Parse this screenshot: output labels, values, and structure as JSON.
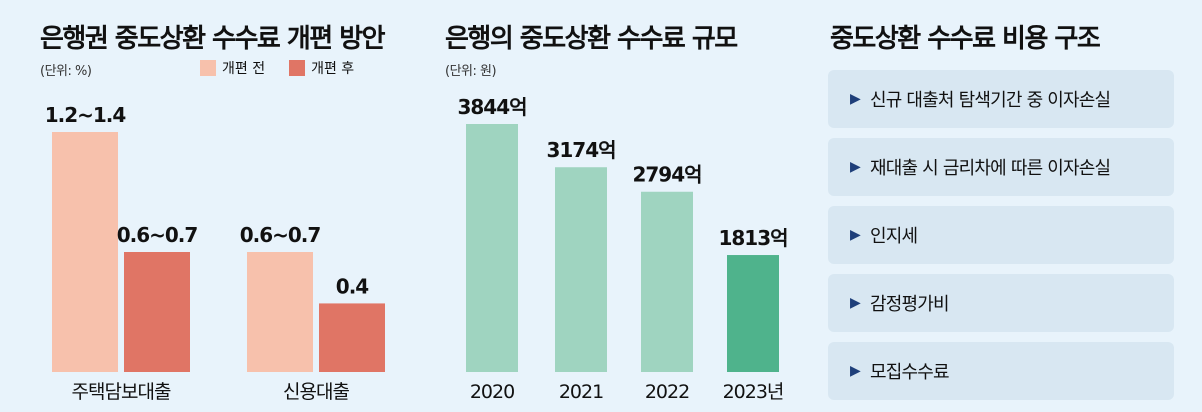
{
  "panels": {
    "left": {
      "title": "은행권 중도상환 수수료 개편 방안",
      "unit": "(단위: %)",
      "legend": [
        {
          "label": "개편 전",
          "color": "#f7c1ac"
        },
        {
          "label": "개편 후",
          "color": "#e07565"
        }
      ]
    },
    "middle": {
      "title": "은행의 중도상환 수수료 규모",
      "unit": "(단위: 원)"
    },
    "right": {
      "title": "중도상환 수수료 비용 구조",
      "items": [
        "신규 대출처 탐색기간 중 이자손실",
        "재대출 시 금리차에 따른 이자손실",
        "인지세",
        "감정평가비",
        "모집수수료"
      ],
      "bullet": "▶"
    }
  },
  "chart_data": [
    {
      "type": "bar",
      "title": "은행권 중도상환 수수료 개편 방안",
      "ylabel": "(단위: %)",
      "categories": [
        "주택담보대출",
        "신용대출"
      ],
      "series": [
        {
          "name": "개편 전",
          "values": [
            1.4,
            0.7
          ],
          "labels": [
            "1.2~1.4",
            "0.6~0.7"
          ],
          "color": "#f7c1ac"
        },
        {
          "name": "개편 후",
          "values": [
            0.7,
            0.4
          ],
          "labels": [
            "0.6~0.7",
            "0.4"
          ],
          "color": "#e07565"
        }
      ],
      "ylim": [
        0,
        1.4
      ]
    },
    {
      "type": "bar",
      "title": "은행의 중도상환 수수료 규모",
      "ylabel": "(단위: 원)",
      "categories": [
        "2020",
        "2021",
        "2022",
        "2023년"
      ],
      "values": [
        3844,
        3174,
        2794,
        1813
      ],
      "labels": [
        "3844억",
        "3174억",
        "2794억",
        "1813억"
      ],
      "colors": [
        "#9fd4c0",
        "#9fd4c0",
        "#9fd4c0",
        "#4fb38c"
      ],
      "ylim": [
        0,
        3844
      ]
    }
  ]
}
